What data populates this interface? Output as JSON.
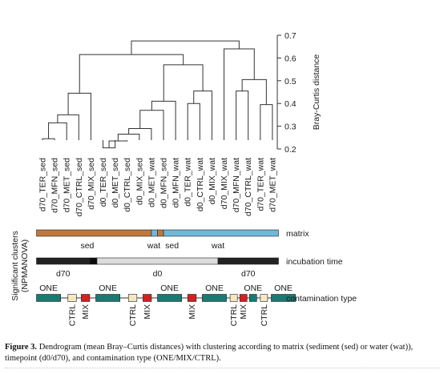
{
  "chart_data": {
    "type": "dendrogram",
    "leaves": [
      "d70_TER_sed",
      "d70_MFN_sed",
      "d70_MET_sed",
      "d70_CTRL_sed",
      "d70_MIX_sed",
      "d0_TER_sed",
      "d0_MET_sed",
      "d0_CTRL_sed",
      "d0_MIX_sed",
      "d0_MET_wat",
      "d0_MFN_sed",
      "d0_MFN_wat",
      "d0_TER_wat",
      "d0_CTRL_wat",
      "d0_MIX_wat",
      "d70_MIX_wat",
      "d70_MFN_wat",
      "d70_CTRL_wat",
      "d70_TER_wat",
      "d70_MET_wat"
    ],
    "merges": [
      {
        "a": "L0",
        "b": "L1",
        "height": 0.245
      },
      {
        "a": "M0",
        "b": "L2",
        "height": 0.315
      },
      {
        "a": "M1",
        "b": "L3",
        "height": 0.35
      },
      {
        "a": "M2",
        "b": "L4",
        "height": 0.445
      },
      {
        "a": "L5",
        "b": "L6",
        "height": 0.205
      },
      {
        "a": "M4",
        "b": "L7",
        "height": 0.235
      },
      {
        "a": "M5",
        "b": "L8",
        "height": 0.265
      },
      {
        "a": "M6",
        "b": "L9",
        "height": 0.29
      },
      {
        "a": "M7",
        "b": "L10",
        "height": 0.37
      },
      {
        "a": "M8",
        "b": "L11",
        "height": 0.41
      },
      {
        "a": "L12",
        "b": "L13",
        "height": 0.4
      },
      {
        "a": "M10",
        "b": "L14",
        "height": 0.455
      },
      {
        "a": "M9",
        "b": "M11",
        "height": 0.57
      },
      {
        "a": "M3",
        "b": "M12",
        "height": 0.615
      },
      {
        "a": "L16",
        "b": "L17",
        "height": 0.455
      },
      {
        "a": "L18",
        "b": "L19",
        "height": 0.395
      },
      {
        "a": "M14",
        "b": "M15",
        "height": 0.505
      },
      {
        "a": "L15",
        "b": "M16",
        "height": 0.64
      },
      {
        "a": "M13",
        "b": "M17",
        "height": 0.675
      }
    ],
    "yaxis": {
      "label": "Bray-Curtis distance",
      "ticks": [
        0.2,
        0.3,
        0.4,
        0.5,
        0.6,
        0.7
      ],
      "tick_labels": [
        "0.2",
        "0.3",
        "0.4",
        "0.5",
        "0.6",
        "0.7"
      ],
      "range": [
        0.2,
        0.72
      ],
      "side": "right"
    },
    "clusters_title": "Significant clusters (NPMANOVA)",
    "tracks": [
      {
        "name": "matrix",
        "segments": [
          {
            "from": 0,
            "to": 9.5,
            "color": "#c0773c"
          },
          {
            "from": 9.5,
            "to": 10,
            "color": "#6fb8d9"
          },
          {
            "from": 10,
            "to": 10.5,
            "color": "#c0773c"
          },
          {
            "from": 10.5,
            "to": 20,
            "color": "#6fb8d9"
          }
        ],
        "labels": [
          {
            "text": "sed",
            "pos": 4.2
          },
          {
            "text": "wat",
            "pos": 9.7
          },
          {
            "text": "sed",
            "pos": 11.2
          },
          {
            "text": "wat",
            "pos": 15.0
          }
        ]
      },
      {
        "name": "incubation time",
        "segments": [
          {
            "from": 0,
            "to": 4.4,
            "color": "#222222"
          },
          {
            "from": 4.4,
            "to": 5,
            "color": "#0a0a0a"
          },
          {
            "from": 5,
            "to": 15,
            "color": "#dcdcdc"
          },
          {
            "from": 15,
            "to": 20,
            "color": "#222222"
          }
        ],
        "labels": [
          {
            "text": "d70",
            "pos": 2.2
          },
          {
            "text": "d0",
            "pos": 10.0
          },
          {
            "text": "d70",
            "pos": 17.5
          }
        ]
      },
      {
        "name": "contamination type",
        "boxes": [
          {
            "from": 0.0,
            "to": 2.0,
            "color": "#1a7a72"
          },
          {
            "from": 2.6,
            "to": 3.3,
            "color": "#f5e7c0"
          },
          {
            "from": 3.7,
            "to": 4.4,
            "color": "#d62020"
          },
          {
            "from": 4.9,
            "to": 6.9,
            "color": "#1a7a72"
          },
          {
            "from": 7.6,
            "to": 8.3,
            "color": "#f5e7c0"
          },
          {
            "from": 8.8,
            "to": 9.5,
            "color": "#d62020"
          },
          {
            "from": 10.0,
            "to": 12.0,
            "color": "#1a7a72"
          },
          {
            "from": 12.5,
            "to": 13.2,
            "color": "#d62020"
          },
          {
            "from": 13.7,
            "to": 15.7,
            "color": "#1a7a72"
          },
          {
            "from": 16.0,
            "to": 16.6,
            "color": "#f5e7c0"
          },
          {
            "from": 16.8,
            "to": 17.4,
            "color": "#d62020"
          },
          {
            "from": 17.6,
            "to": 18.2,
            "color": "#1a7a72"
          },
          {
            "from": 18.5,
            "to": 19.1,
            "color": "#f5e7c0"
          },
          {
            "from": 19.4,
            "to": 21.4,
            "color": "#1a7a72"
          }
        ],
        "labels": [
          {
            "text": "ONE",
            "pos": 1.0,
            "where": "above"
          },
          {
            "text": "ONE",
            "pos": 5.9,
            "where": "above"
          },
          {
            "text": "ONE",
            "pos": 11.0,
            "where": "above"
          },
          {
            "text": "ONE",
            "pos": 14.7,
            "where": "above"
          },
          {
            "text": "ONE",
            "pos": 17.9,
            "where": "above"
          },
          {
            "text": "ONE",
            "pos": 20.4,
            "where": "above"
          },
          {
            "text": "CTRL",
            "pos": 2.95,
            "where": "below"
          },
          {
            "text": "MIX",
            "pos": 4.05,
            "where": "below"
          },
          {
            "text": "CTRL",
            "pos": 7.95,
            "where": "below"
          },
          {
            "text": "MIX",
            "pos": 9.15,
            "where": "below"
          },
          {
            "text": "MIX",
            "pos": 12.85,
            "where": "below"
          },
          {
            "text": "CTRL",
            "pos": 16.3,
            "where": "below"
          },
          {
            "text": "MIX",
            "pos": 17.1,
            "where": "below"
          },
          {
            "text": "CTRL",
            "pos": 18.8,
            "where": "below"
          }
        ]
      }
    ]
  },
  "caption": {
    "label": "Figure 3.",
    "text": "Dendrogram (mean Bray–Curtis distances) with clustering according to matrix (sediment (sed) or water (wat)), timepoint (d0/d70), and contamination type (ONE/MIX/CTRL)."
  }
}
